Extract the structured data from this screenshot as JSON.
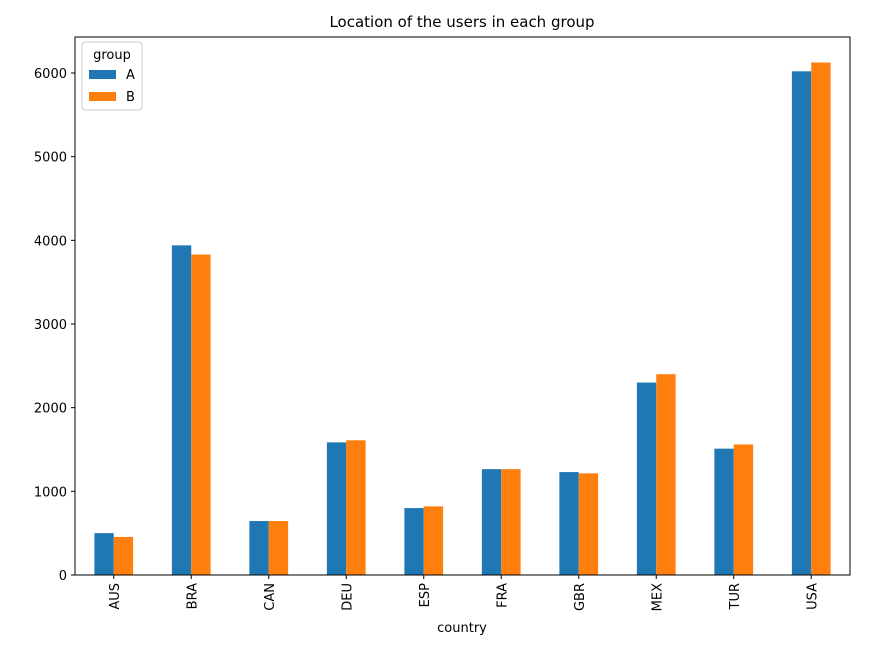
{
  "chart_data": {
    "type": "bar",
    "title": "Location of the users in each group",
    "xlabel": "country",
    "ylabel": "",
    "categories": [
      "AUS",
      "BRA",
      "CAN",
      "DEU",
      "ESP",
      "FRA",
      "GBR",
      "MEX",
      "TUR",
      "USA"
    ],
    "series": [
      {
        "name": "A",
        "color": "#1f77b4",
        "values": [
          500,
          3940,
          645,
          1585,
          800,
          1265,
          1230,
          2300,
          1510,
          6020
        ]
      },
      {
        "name": "B",
        "color": "#ff7f0e",
        "values": [
          455,
          3830,
          645,
          1610,
          820,
          1265,
          1215,
          2400,
          1560,
          6125
        ]
      }
    ],
    "ylim": [
      0,
      6430
    ],
    "yticks": [
      0,
      1000,
      2000,
      3000,
      4000,
      5000,
      6000
    ],
    "grid": false,
    "legend": {
      "title": "group",
      "placement": "top-left"
    }
  }
}
